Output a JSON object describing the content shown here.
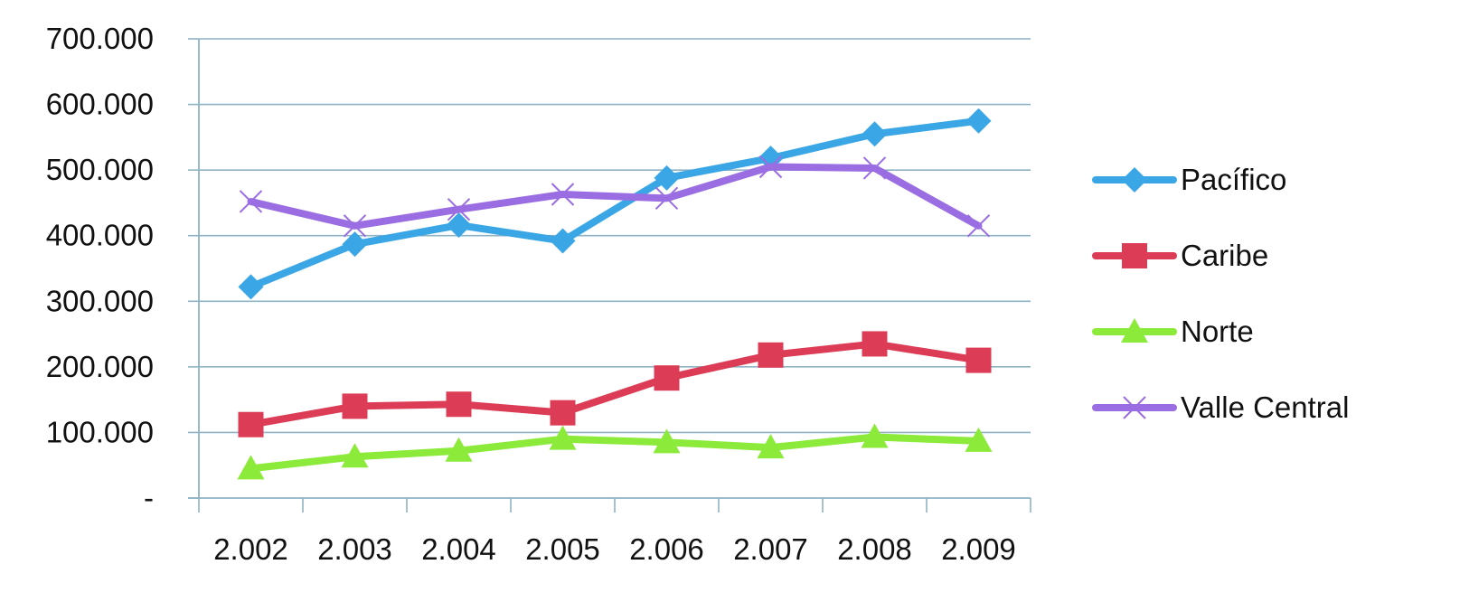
{
  "chart_data": {
    "type": "line",
    "title": "",
    "xlabel": "",
    "ylabel": "",
    "categories": [
      "2.002",
      "2.003",
      "2.004",
      "2.005",
      "2.006",
      "2.007",
      "2.008",
      "2.009"
    ],
    "ylim": [
      0,
      700000
    ],
    "y_ticks": [
      0,
      100000,
      200000,
      300000,
      400000,
      500000,
      600000,
      700000
    ],
    "y_tick_labels": [
      "-",
      "100.000",
      "200.000",
      "300.000",
      "400.000",
      "500.000",
      "600.000",
      "700.000"
    ],
    "grid": true,
    "legend_position": "right",
    "series": [
      {
        "name": "Pacífico",
        "color": "#3aa6e6",
        "marker": "diamond",
        "values": [
          322000,
          387000,
          416000,
          392000,
          488000,
          518000,
          555000,
          575000
        ]
      },
      {
        "name": "Caribe",
        "color": "#dc3c55",
        "marker": "square",
        "values": [
          112000,
          140000,
          143000,
          130000,
          183000,
          218000,
          235000,
          210000
        ]
      },
      {
        "name": "Norte",
        "color": "#8bea3a",
        "marker": "triangle",
        "values": [
          45000,
          63000,
          72000,
          90000,
          85000,
          77000,
          93000,
          87000
        ]
      },
      {
        "name": "Valle Central",
        "color": "#9a6ee2",
        "marker": "x",
        "values": [
          452000,
          415000,
          440000,
          463000,
          457000,
          505000,
          503000,
          415000
        ]
      }
    ]
  }
}
